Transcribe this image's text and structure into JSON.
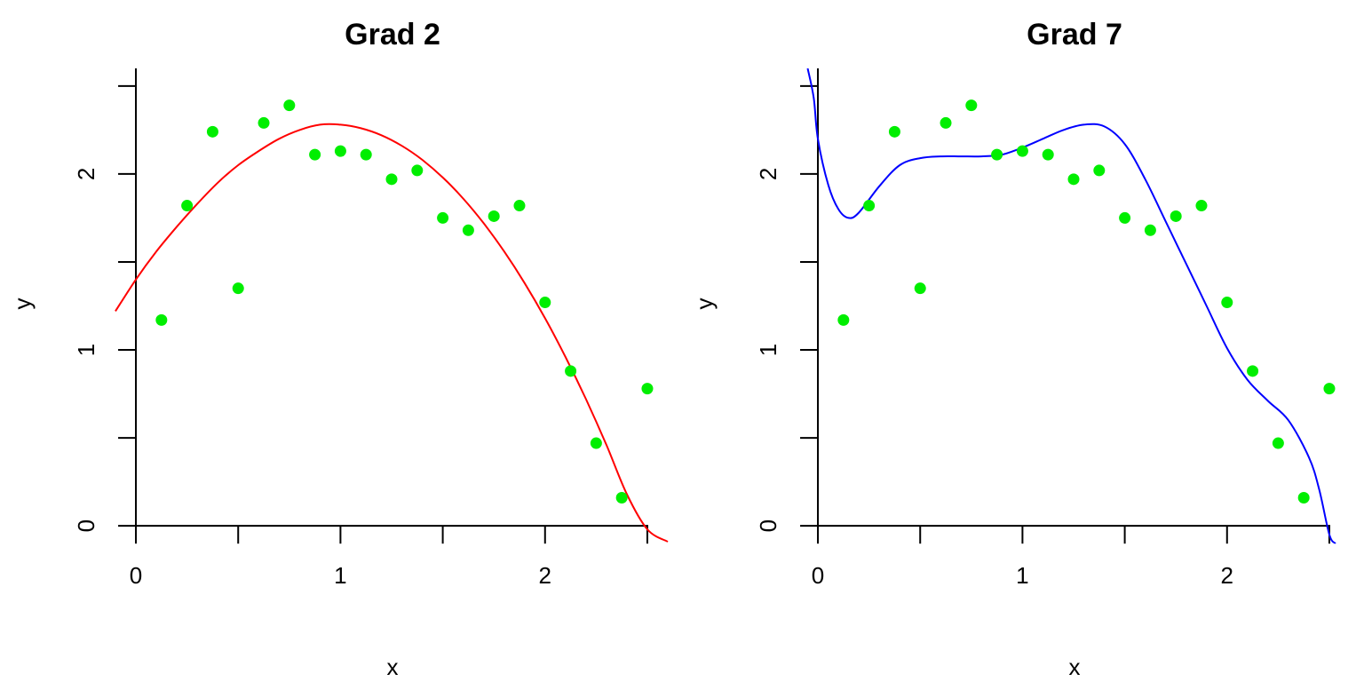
{
  "chart_data": [
    {
      "type": "scatter",
      "title": "Grad 2",
      "xlabel": "x",
      "ylabel": "y",
      "xlim": [
        -0.1,
        2.6
      ],
      "ylim": [
        -0.1,
        2.6
      ],
      "x_ticks": [
        0,
        1,
        2
      ],
      "x_tick_labels": [
        "0",
        "1",
        "2"
      ],
      "x_minor_ticks": [
        0.5,
        1.5,
        2.5
      ],
      "y_ticks": [
        0,
        1,
        2
      ],
      "y_tick_labels": [
        "0",
        "1",
        "2"
      ],
      "y_minor_ticks": [
        0.5,
        1.5,
        2.5
      ],
      "grid": false,
      "points": {
        "color": "#00ee00",
        "x": [
          0.125,
          0.25,
          0.375,
          0.5,
          0.625,
          0.75,
          0.875,
          1.0,
          1.125,
          1.25,
          1.375,
          1.5,
          1.625,
          1.75,
          1.875,
          2.0,
          2.125,
          2.25,
          2.375,
          2.5
        ],
        "y": [
          1.17,
          1.82,
          2.24,
          1.35,
          2.29,
          2.39,
          2.11,
          2.13,
          2.11,
          1.97,
          2.02,
          1.75,
          1.68,
          1.76,
          1.82,
          1.27,
          0.88,
          0.47,
          0.16,
          0.78
        ]
      },
      "fit": {
        "degree": 2,
        "color": "#ff0000",
        "x": [
          -0.1,
          0.0,
          0.1,
          0.2,
          0.3,
          0.4,
          0.5,
          0.6,
          0.7,
          0.8,
          0.9,
          1.0,
          1.1,
          1.2,
          1.3,
          1.4,
          1.5,
          1.6,
          1.7,
          1.8,
          1.9,
          2.0,
          2.1,
          2.2,
          2.3,
          2.4,
          2.5,
          2.6
        ],
        "y": [
          1.22,
          1.4,
          1.56,
          1.7,
          1.83,
          1.95,
          2.05,
          2.13,
          2.2,
          2.25,
          2.28,
          2.28,
          2.26,
          2.22,
          2.16,
          2.08,
          1.98,
          1.86,
          1.72,
          1.56,
          1.38,
          1.18,
          0.96,
          0.72,
          0.46,
          0.18,
          -0.02,
          -0.09
        ]
      }
    },
    {
      "type": "scatter",
      "title": "Grad 7",
      "xlabel": "x",
      "ylabel": "y",
      "xlim": [
        -0.1,
        2.6
      ],
      "ylim": [
        -0.1,
        2.6
      ],
      "x_ticks": [
        0,
        1,
        2
      ],
      "x_tick_labels": [
        "0",
        "1",
        "2"
      ],
      "x_minor_ticks": [
        0.5,
        1.5,
        2.5
      ],
      "y_ticks": [
        0,
        1,
        2
      ],
      "y_tick_labels": [
        "0",
        "1",
        "2"
      ],
      "y_minor_ticks": [
        0.5,
        1.5,
        2.5
      ],
      "grid": false,
      "points": {
        "color": "#00ee00",
        "x": [
          0.125,
          0.25,
          0.375,
          0.5,
          0.625,
          0.75,
          0.875,
          1.0,
          1.125,
          1.25,
          1.375,
          1.5,
          1.625,
          1.75,
          1.875,
          2.0,
          2.125,
          2.25,
          2.375,
          2.5
        ],
        "y": [
          1.17,
          1.82,
          2.24,
          1.35,
          2.29,
          2.39,
          2.11,
          2.13,
          2.11,
          1.97,
          2.02,
          1.75,
          1.68,
          1.76,
          1.82,
          1.27,
          0.88,
          0.47,
          0.16,
          0.78
        ]
      },
      "fit": {
        "degree": 7,
        "color": "#0000ff",
        "x": [
          -0.05,
          -0.02,
          0.0,
          0.05,
          0.1,
          0.15,
          0.2,
          0.3,
          0.4,
          0.5,
          0.6,
          0.7,
          0.8,
          0.9,
          1.0,
          1.1,
          1.2,
          1.3,
          1.4,
          1.5,
          1.6,
          1.7,
          1.8,
          1.9,
          2.0,
          2.1,
          2.2,
          2.3,
          2.4,
          2.45,
          2.5,
          2.53
        ],
        "y": [
          2.6,
          2.43,
          2.2,
          1.94,
          1.8,
          1.75,
          1.78,
          1.93,
          2.05,
          2.09,
          2.1,
          2.1,
          2.1,
          2.11,
          2.15,
          2.2,
          2.25,
          2.28,
          2.27,
          2.17,
          1.97,
          1.73,
          1.49,
          1.25,
          1.01,
          0.83,
          0.71,
          0.6,
          0.39,
          0.21,
          -0.05,
          -0.1
        ]
      }
    }
  ]
}
